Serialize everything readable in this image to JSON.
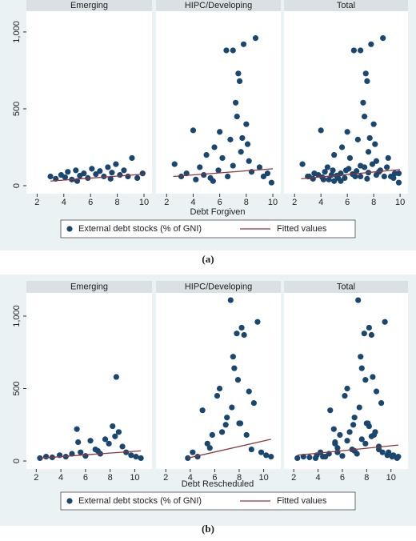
{
  "chart_data": [
    {
      "type": "scatter",
      "caption": "(a)",
      "xlabel": "Debt Forgiven",
      "legend": [
        {
          "name": "External debt stocks (% of GNI)",
          "color": "#1a476f"
        },
        {
          "name": "Fitted values",
          "color": "#90353b"
        }
      ],
      "xlim": [
        1.2,
        10.6
      ],
      "xticks": [
        2,
        4,
        6,
        8,
        10
      ],
      "ylim": [
        -52,
        1135
      ],
      "yticks": [
        0,
        500,
        {
          "value": 1000,
          "label": "1,000"
        }
      ],
      "facets": [
        {
          "title": "Emerging",
          "points": {
            "x": [
              3.0,
              3.4,
              3.8,
              4.1,
              4.3,
              4.6,
              4.9,
              5.2,
              5.5,
              5.8,
              6.1,
              6.4,
              6.7,
              7.0,
              7.3,
              7.6,
              7.9,
              8.2,
              8.5,
              8.8,
              9.1,
              9.5,
              9.9,
              5.0,
              7.5
            ],
            "values": [
              60,
              45,
              70,
              55,
              90,
              40,
              100,
              65,
              80,
              50,
              110,
              75,
              95,
              60,
              120,
              85,
              140,
              70,
              100,
              60,
              180,
              50,
              80,
              30,
              45
            ]
          },
          "fit": {
            "x": [
              3.0,
              10.0
            ],
            "values": [
              30,
              75
            ]
          }
        },
        {
          "title": "HIPC/Developing",
          "points": {
            "x": [
              2.6,
              3.1,
              3.5,
              4.0,
              4.2,
              4.5,
              4.8,
              5.0,
              5.3,
              5.6,
              5.9,
              6.2,
              6.5,
              6.8,
              7.0,
              7.2,
              7.4,
              7.5,
              7.6,
              7.8,
              8.0,
              8.2,
              8.4,
              8.7,
              9.0,
              9.3,
              9.6,
              9.9,
              6.0,
              7.0,
              7.3,
              7.7,
              8.1,
              6.6,
              5.5
            ],
            "values": [
              140,
              60,
              80,
              360,
              40,
              120,
              70,
              200,
              50,
              250,
              100,
              180,
              880,
              300,
              130,
              540,
              730,
              680,
              220,
              920,
              400,
              160,
              90,
              960,
              120,
              60,
              80,
              20,
              350,
              880,
              450,
              310,
              270,
              60,
              30
            ]
          },
          "fit": {
            "x": [
              2.5,
              10.0
            ],
            "values": [
              60,
              110
            ]
          }
        },
        {
          "title": "Total",
          "points": {
            "x": [
              3.0,
              3.4,
              3.8,
              4.1,
              4.3,
              4.6,
              4.9,
              5.2,
              5.5,
              5.8,
              6.1,
              6.4,
              6.7,
              7.0,
              7.3,
              7.6,
              7.9,
              8.2,
              8.5,
              8.8,
              9.1,
              9.5,
              9.9,
              5.0,
              7.5,
              2.6,
              3.1,
              3.5,
              4.0,
              4.2,
              4.5,
              4.8,
              5.0,
              5.3,
              5.6,
              5.9,
              6.2,
              6.5,
              6.8,
              7.0,
              7.2,
              7.4,
              7.5,
              7.6,
              7.8,
              8.0,
              8.2,
              8.4,
              8.7,
              9.0,
              9.3,
              9.6,
              9.9,
              6.0,
              7.0,
              7.3,
              7.7,
              8.1,
              6.6,
              5.5
            ],
            "values": [
              60,
              45,
              70,
              55,
              90,
              40,
              100,
              65,
              80,
              50,
              110,
              75,
              95,
              60,
              120,
              85,
              140,
              70,
              100,
              60,
              180,
              50,
              80,
              30,
              45,
              140,
              60,
              80,
              360,
              40,
              120,
              70,
              200,
              50,
              250,
              100,
              180,
              880,
              300,
              130,
              540,
              730,
              680,
              220,
              920,
              400,
              160,
              90,
              960,
              120,
              60,
              80,
              20,
              350,
              880,
              450,
              310,
              270,
              60,
              30
            ]
          },
          "fit": {
            "x": [
              2.5,
              10.0
            ],
            "values": [
              45,
              105
            ]
          }
        }
      ]
    },
    {
      "type": "scatter",
      "caption": "(b)",
      "xlabel": "Debt Rescheduled",
      "legend": [
        {
          "name": "External debt stocks (% of GNI)",
          "color": "#1a476f"
        },
        {
          "name": "Fitted values",
          "color": "#90353b"
        }
      ],
      "xlim": [
        1.2,
        11.4
      ],
      "xticks": [
        2,
        4,
        6,
        8,
        10
      ],
      "ylim": [
        -55,
        1160
      ],
      "yticks": [
        0,
        500,
        {
          "value": 1000,
          "label": "1,000"
        }
      ],
      "facets": [
        {
          "title": "Emerging",
          "points": {
            "x": [
              2.3,
              2.8,
              3.3,
              3.9,
              4.4,
              4.9,
              5.3,
              5.6,
              6.0,
              6.4,
              6.8,
              7.2,
              7.6,
              7.9,
              8.2,
              8.5,
              8.7,
              9.0,
              9.3,
              9.7,
              10.1,
              10.5,
              5.4,
              8.4,
              7.0
            ],
            "values": [
              20,
              30,
              25,
              40,
              30,
              50,
              220,
              60,
              35,
              140,
              80,
              50,
              150,
              120,
              240,
              580,
              200,
              100,
              60,
              40,
              30,
              20,
              130,
              170,
              70
            ]
          },
          "fit": {
            "x": [
              2.3,
              10.5
            ],
            "values": [
              20,
              70
            ]
          }
        },
        {
          "title": "HIPC/Developing",
          "points": {
            "x": [
              3.8,
              4.2,
              4.6,
              5.0,
              5.4,
              5.8,
              6.2,
              6.6,
              7.0,
              7.3,
              7.5,
              7.6,
              7.8,
              8.0,
              8.2,
              8.4,
              8.6,
              8.8,
              9.0,
              9.2,
              9.5,
              9.8,
              10.2,
              10.6,
              6.4,
              7.4,
              7.9,
              8.1,
              6.9,
              5.6
            ],
            "values": [
              20,
              60,
              30,
              350,
              120,
              180,
              450,
              200,
              300,
              1110,
              720,
              640,
              880,
              260,
              920,
              870,
              180,
              480,
              80,
              400,
              960,
              60,
              40,
              30,
              500,
              370,
              560,
              260,
              250,
              90
            ]
          },
          "fit": {
            "x": [
              3.8,
              10.6
            ],
            "values": [
              20,
              150
            ]
          }
        },
        {
          "title": "Total",
          "points": {
            "x": [
              2.3,
              2.8,
              3.3,
              3.9,
              4.4,
              4.9,
              5.3,
              5.6,
              6.0,
              6.4,
              6.8,
              7.2,
              7.6,
              7.9,
              8.2,
              8.5,
              8.7,
              9.0,
              9.3,
              9.7,
              10.1,
              10.5,
              5.4,
              8.4,
              7.0,
              3.8,
              4.2,
              4.6,
              5.0,
              5.4,
              5.8,
              6.2,
              6.6,
              7.0,
              7.3,
              7.5,
              7.6,
              7.8,
              8.0,
              8.2,
              8.4,
              8.6,
              8.8,
              9.0,
              9.2,
              9.5,
              9.8,
              10.2,
              10.6,
              6.4,
              7.4,
              7.9,
              8.1,
              6.9,
              5.6
            ],
            "values": [
              20,
              30,
              25,
              40,
              30,
              50,
              220,
              60,
              35,
              140,
              80,
              50,
              150,
              120,
              240,
              580,
              200,
              100,
              60,
              40,
              30,
              20,
              130,
              170,
              70,
              20,
              60,
              30,
              350,
              120,
              180,
              450,
              200,
              300,
              1110,
              720,
              640,
              880,
              260,
              920,
              870,
              180,
              480,
              80,
              400,
              960,
              60,
              40,
              30,
              500,
              370,
              560,
              260,
              250,
              90
            ]
          },
          "fit": {
            "x": [
              2.3,
              10.6
            ],
            "values": [
              40,
              110
            ]
          }
        }
      ]
    }
  ]
}
